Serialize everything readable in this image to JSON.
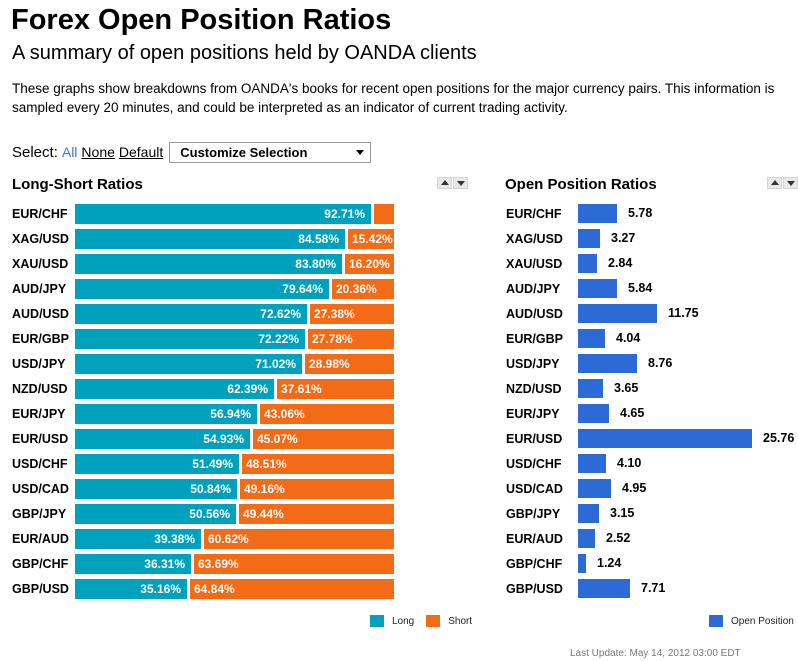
{
  "page": {
    "title": "Forex Open Position Ratios",
    "subtitle": "A summary of open positions held by OANDA clients",
    "description": "These graphs show breakdowns from OANDA's books for recent open positions for the major currency pairs. This information is sampled every 20 minutes, and could be interpreted as an indicator of current trading activity.",
    "last_update": "Last Update: May 14, 2012 03:00 EDT"
  },
  "select": {
    "label": "Select:",
    "all": "All",
    "none": "None",
    "default": "Default",
    "dropdown_value": "Customize Selection"
  },
  "colors": {
    "long": "#00a1bd",
    "short": "#f36b17",
    "open_position": "#2c6bd6",
    "link": "#3a7cc8"
  },
  "icons": {
    "sort_up": "triangle-up-icon",
    "sort_down": "triangle-down-icon",
    "dropdown": "chevron-down-icon"
  },
  "chart_data": [
    {
      "type": "bar",
      "title": "Long-Short Ratios",
      "orientation": "horizontal",
      "stacked": true,
      "categories": [
        "EUR/CHF",
        "XAG/USD",
        "XAU/USD",
        "AUD/JPY",
        "AUD/USD",
        "EUR/GBP",
        "USD/JPY",
        "NZD/USD",
        "EUR/JPY",
        "EUR/USD",
        "USD/CHF",
        "USD/CAD",
        "GBP/JPY",
        "EUR/AUD",
        "GBP/CHF",
        "GBP/USD"
      ],
      "series": [
        {
          "name": "Long",
          "values": [
            92.71,
            84.58,
            83.8,
            79.64,
            72.62,
            72.22,
            71.02,
            62.39,
            56.94,
            54.93,
            51.49,
            50.84,
            50.56,
            39.38,
            36.31,
            35.16
          ],
          "labels": [
            "92.71%",
            "84.58%",
            "83.80%",
            "79.64%",
            "72.62%",
            "72.22%",
            "71.02%",
            "62.39%",
            "56.94%",
            "54.93%",
            "51.49%",
            "50.84%",
            "50.56%",
            "39.38%",
            "36.31%",
            "35.16%"
          ]
        },
        {
          "name": "Short",
          "values": [
            7.29,
            15.42,
            16.2,
            20.36,
            27.38,
            27.78,
            28.98,
            37.61,
            43.06,
            45.07,
            48.51,
            49.16,
            49.44,
            60.62,
            63.69,
            64.84
          ],
          "labels": [
            "",
            "15.42%",
            "16.20%",
            "20.36%",
            "27.38%",
            "27.78%",
            "28.98%",
            "37.61%",
            "43.06%",
            "45.07%",
            "48.51%",
            "49.16%",
            "49.44%",
            "60.62%",
            "63.69%",
            "64.84%"
          ]
        }
      ],
      "xlim": [
        0,
        100
      ],
      "legend": "bottom-right",
      "grid": false
    },
    {
      "type": "bar",
      "title": "Open Position Ratios",
      "orientation": "horizontal",
      "categories": [
        "EUR/CHF",
        "XAG/USD",
        "XAU/USD",
        "AUD/JPY",
        "AUD/USD",
        "EUR/GBP",
        "USD/JPY",
        "NZD/USD",
        "EUR/JPY",
        "EUR/USD",
        "USD/CHF",
        "USD/CAD",
        "GBP/JPY",
        "EUR/AUD",
        "GBP/CHF",
        "GBP/USD"
      ],
      "series": [
        {
          "name": "Open Position",
          "values": [
            5.78,
            3.27,
            2.84,
            5.84,
            11.75,
            4.04,
            8.76,
            3.65,
            4.65,
            25.76,
            4.1,
            4.95,
            3.15,
            2.52,
            1.24,
            7.71
          ],
          "labels": [
            "5.78",
            "3.27",
            "2.84",
            "5.84",
            "11.75",
            "4.04",
            "8.76",
            "3.65",
            "4.65",
            "25.76",
            "4.10",
            "4.95",
            "3.15",
            "2.52",
            "1.24",
            "7.71"
          ]
        }
      ],
      "xlim": [
        0,
        25.76
      ],
      "legend": "bottom-right",
      "grid": false
    }
  ]
}
